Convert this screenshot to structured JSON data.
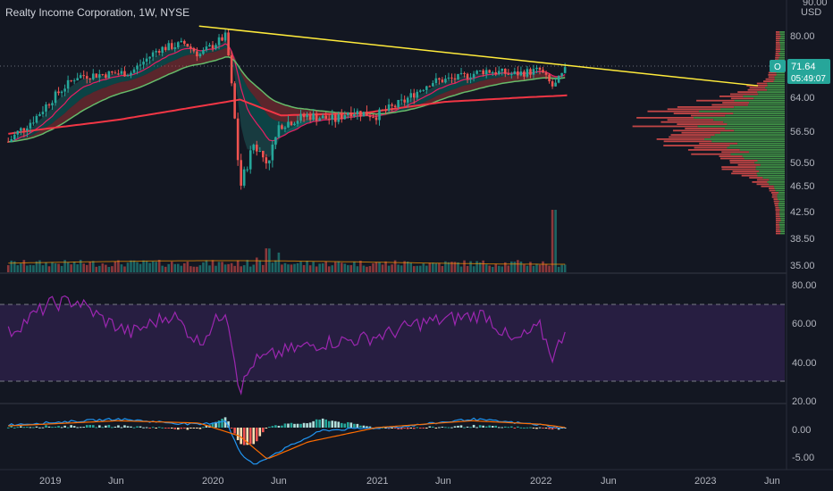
{
  "header": {
    "title": "Realty Income Corporation, 1W, NYSE"
  },
  "colors": {
    "background": "#131722",
    "bull": "#26a69a",
    "bear": "#ef5350",
    "trendline": "#ffeb3b",
    "rsi_line": "#9c27b0",
    "rsi_band": "#2a1f45",
    "macd_line": "#2196f3",
    "signal_line": "#ff6d00",
    "ma_long": "#f23645",
    "ma_green": "#66bb6a",
    "label_green": "#26a69a"
  },
  "price_pane": {
    "unit_label": "USD",
    "top_label": "90.00",
    "y_ticks": [
      "80.00",
      "64.00",
      "56.50",
      "50.50",
      "46.50",
      "42.50",
      "38.50",
      "35.00"
    ],
    "last_price": {
      "label": "O",
      "value": "71.64",
      "countdown": "05:49:07"
    }
  },
  "rsi_pane": {
    "y_ticks": [
      "80.00",
      "60.00",
      "40.00",
      "20.00"
    ],
    "upper_band": 70,
    "lower_band": 30
  },
  "macd_pane": {
    "y_ticks": [
      "0.00",
      "-5.00"
    ]
  },
  "x_axis": {
    "labels": [
      "2019",
      "Jun",
      "2020",
      "Jun",
      "2021",
      "Jun",
      "2022",
      "Jun",
      "2023",
      "Jun"
    ]
  },
  "chart_data": {
    "type": "candlestick",
    "symbol": "O",
    "interval": "1W",
    "exchange": "NYSE",
    "title": "Realty Income Corporation, 1W, NYSE",
    "x_range": [
      "2018-10",
      "2023-07"
    ],
    "ylim": [
      35,
      90
    ],
    "close_path": [
      [
        "2018-10",
        54.5
      ],
      [
        "2018-12",
        59.5
      ],
      [
        "2019-01",
        63.0
      ],
      [
        "2019-03",
        69.5
      ],
      [
        "2019-05",
        70.0
      ],
      [
        "2019-07",
        70.5
      ],
      [
        "2019-09",
        76.5
      ],
      [
        "2019-11",
        78.0
      ],
      [
        "2019-12",
        75.0
      ],
      [
        "2020-02",
        80.0
      ],
      [
        "2020-03",
        46.0
      ],
      [
        "2020-04",
        54.0
      ],
      [
        "2020-05",
        50.5
      ],
      [
        "2020-06",
        58.0
      ],
      [
        "2020-08",
        60.0
      ],
      [
        "2020-10",
        59.0
      ],
      [
        "2020-11",
        61.0
      ],
      [
        "2021-01",
        60.0
      ],
      [
        "2021-03",
        63.0
      ],
      [
        "2021-05",
        68.0
      ],
      [
        "2021-07",
        69.0
      ],
      [
        "2021-09",
        71.0
      ],
      [
        "2021-11",
        70.0
      ],
      [
        "2022-01",
        71.0
      ],
      [
        "2022-02",
        66.5
      ],
      [
        "2022-03",
        71.64
      ]
    ],
    "moving_average_long": [
      [
        "2018-10",
        56.0
      ],
      [
        "2019-06",
        59.0
      ],
      [
        "2020-01",
        62.5
      ],
      [
        "2020-03",
        63.5
      ],
      [
        "2020-06",
        60.0
      ],
      [
        "2020-12",
        60.5
      ],
      [
        "2021-06",
        63.0
      ],
      [
        "2022-03",
        64.5
      ]
    ],
    "trendline": {
      "start": [
        "2019-12",
        82.5
      ],
      "end": [
        "2023-05",
        67.0
      ]
    },
    "rsi": {
      "ylim": [
        20,
        85
      ],
      "values": [
        [
          "2018-10",
          55
        ],
        [
          "2019-01",
          70
        ],
        [
          "2019-03",
          72
        ],
        [
          "2019-05",
          62
        ],
        [
          "2019-07",
          55
        ],
        [
          "2019-10",
          65
        ],
        [
          "2019-12",
          50
        ],
        [
          "2020-02",
          68
        ],
        [
          "2020-03",
          25
        ],
        [
          "2020-04",
          40
        ],
        [
          "2020-06",
          45
        ],
        [
          "2020-09",
          50
        ],
        [
          "2020-12",
          52
        ],
        [
          "2021-02",
          55
        ],
        [
          "2021-04",
          60
        ],
        [
          "2021-06",
          62
        ],
        [
          "2021-09",
          65
        ],
        [
          "2021-11",
          50
        ],
        [
          "2022-01",
          58
        ],
        [
          "2022-02",
          42
        ],
        [
          "2022-03",
          60
        ]
      ]
    },
    "macd": {
      "ylim": [
        -7.5,
        3.5
      ],
      "macd": [
        [
          "2018-10",
          0.5
        ],
        [
          "2019-06",
          1.5
        ],
        [
          "2019-12",
          0.5
        ],
        [
          "2020-02",
          1.2
        ],
        [
          "2020-03",
          -4.5
        ],
        [
          "2020-04",
          -6.5
        ],
        [
          "2020-06",
          -4.0
        ],
        [
          "2020-09",
          -0.5
        ],
        [
          "2021-03",
          0.2
        ],
        [
          "2021-08",
          1.5
        ],
        [
          "2022-01",
          0.5
        ],
        [
          "2022-03",
          -0.2
        ]
      ],
      "signal": [
        [
          "2018-10",
          0.3
        ],
        [
          "2019-06",
          1.2
        ],
        [
          "2019-12",
          0.8
        ],
        [
          "2020-03",
          -1.5
        ],
        [
          "2020-05",
          -5.5
        ],
        [
          "2020-08",
          -2.5
        ],
        [
          "2021-01",
          0.0
        ],
        [
          "2021-08",
          1.2
        ],
        [
          "2022-01",
          0.6
        ],
        [
          "2022-03",
          0.0
        ]
      ]
    }
  }
}
